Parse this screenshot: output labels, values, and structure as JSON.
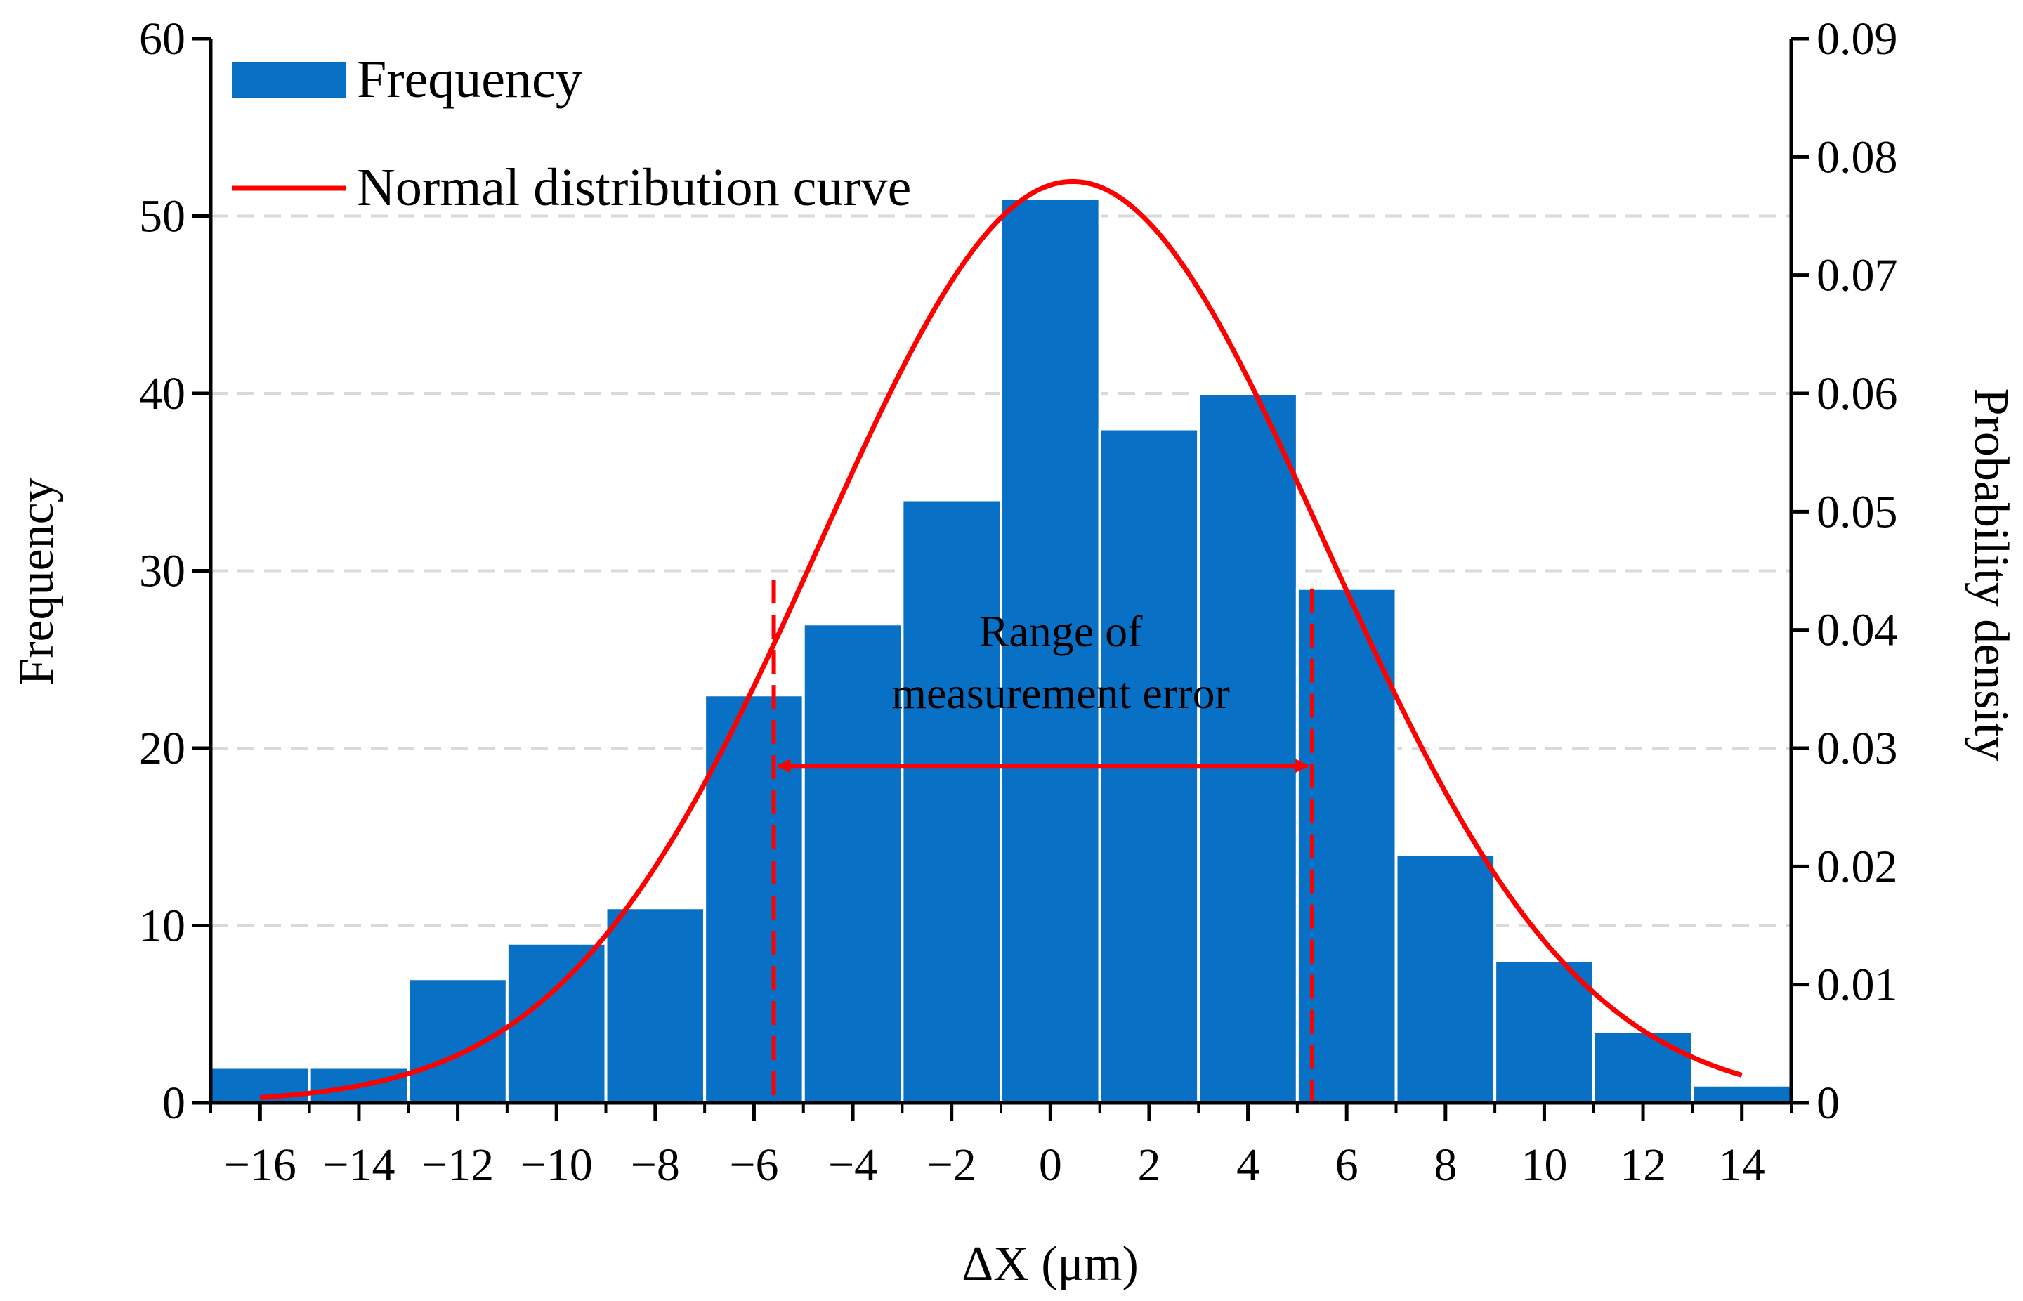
{
  "chart_data": {
    "type": "bar",
    "title": "",
    "xlabel": "ΔX (μm)",
    "ylabel": "Frequency",
    "y2label": "Probability density",
    "xlim": [
      -17,
      15
    ],
    "ylim": [
      0,
      60
    ],
    "y2lim": [
      0,
      0.09
    ],
    "x_ticks": [
      -16,
      -14,
      -12,
      -10,
      -8,
      -6,
      -4,
      -2,
      0,
      2,
      4,
      6,
      8,
      10,
      12,
      14
    ],
    "x_tick_labels": [
      "−16",
      "−14",
      "−12",
      "−10",
      "−8",
      "−6",
      "−4",
      "−2",
      "0",
      "2",
      "4",
      "6",
      "8",
      "10",
      "12",
      "14"
    ],
    "y_ticks": [
      0,
      10,
      20,
      30,
      40,
      50,
      60
    ],
    "y_tick_labels": [
      "0",
      "10",
      "20",
      "30",
      "40",
      "50",
      "60"
    ],
    "y2_ticks": [
      0,
      0.01,
      0.02,
      0.03,
      0.04,
      0.05,
      0.06,
      0.07,
      0.08,
      0.09
    ],
    "y2_tick_labels": [
      "0",
      "0.01",
      "0.02",
      "0.03",
      "0.04",
      "0.05",
      "0.06",
      "0.07",
      "0.08",
      "0.09"
    ],
    "gridlines": "horizontal dashed",
    "legend_position": "top-left",
    "series": [
      {
        "name": "Frequency",
        "kind": "bar",
        "color": "#0870c5",
        "bins": [
          {
            "left": -17,
            "right": -15,
            "value": 2
          },
          {
            "left": -15,
            "right": -13,
            "value": 2
          },
          {
            "left": -13,
            "right": -11,
            "value": 7
          },
          {
            "left": -11,
            "right": -9,
            "value": 9
          },
          {
            "left": -9,
            "right": -7,
            "value": 11
          },
          {
            "left": -7,
            "right": -5,
            "value": 23
          },
          {
            "left": -5,
            "right": -3,
            "value": 27
          },
          {
            "left": -3,
            "right": -1,
            "value": 34
          },
          {
            "left": -1,
            "right": 1,
            "value": 51
          },
          {
            "left": 1,
            "right": 3,
            "value": 38
          },
          {
            "left": 3,
            "right": 5,
            "value": 40
          },
          {
            "left": 5,
            "right": 7,
            "value": 29
          },
          {
            "left": 7,
            "right": 9,
            "value": 14
          },
          {
            "left": 9,
            "right": 11,
            "value": 8
          },
          {
            "left": 11,
            "right": 13,
            "value": 4
          },
          {
            "left": 13,
            "right": 15,
            "value": 1
          }
        ]
      },
      {
        "name": "Normal distribution curve",
        "kind": "line",
        "color": "#ff0000",
        "axis": "right",
        "mean": 0.45,
        "std": 5.12,
        "x_range": [
          -16,
          14
        ]
      }
    ],
    "annotations": [
      {
        "text_lines": [
          "Range of",
          "measurement error"
        ],
        "x_from": -5.6,
        "x_to": 5.3,
        "y": 19,
        "color": "#ff0000"
      }
    ],
    "reference_lines": [
      {
        "x": -5.6,
        "y_top": 29.5,
        "style": "dashed",
        "color": "#ff0000"
      },
      {
        "x": 5.3,
        "y_top": 29,
        "style": "dashed",
        "color": "#ff0000"
      }
    ]
  }
}
